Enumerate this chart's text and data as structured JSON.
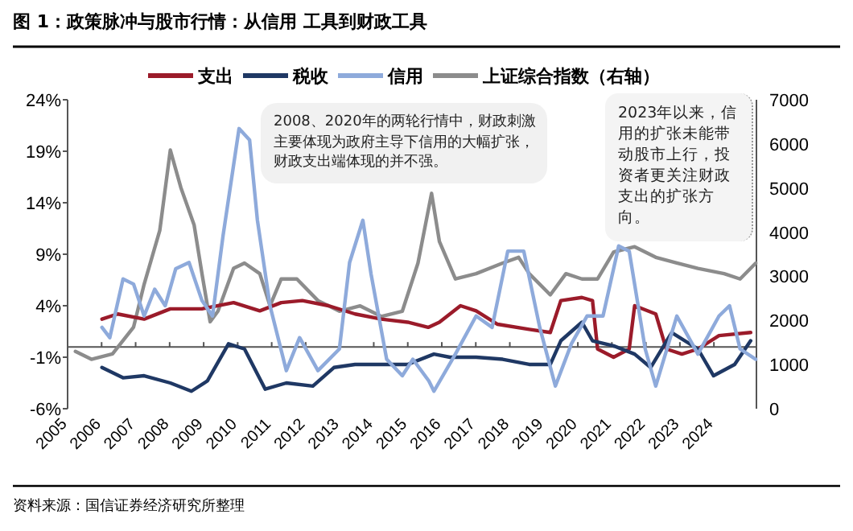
{
  "chart_data": {
    "type": "line",
    "title": "图 1：政策脉冲与股市行情：从信用 工具到财政工具",
    "legend": "top",
    "line_style": "solid",
    "annotations": [
      "2008、2020年的两轮行情中，财政刺激主要体现为政府主导下信用的大幅扩张，财政支出端体现的并不强。",
      "2023年以来，信用的扩张未能带动股市上行，投资者更关注财政支出的扩张方向。",
      "资料来源：国信证券经济研究所整理"
    ],
    "xlim": [
      2005,
      2025.25
    ],
    "xticks": [
      2005,
      2006,
      2007,
      2008,
      2009,
      2010,
      2011,
      2012,
      2013,
      2014,
      2015,
      2016,
      2017,
      2018,
      2019,
      2020,
      2021,
      2022,
      2023,
      2024
    ],
    "ylim": [
      -6,
      24
    ],
    "yticks": [
      {
        "value": -6,
        "label": "-6%"
      },
      {
        "value": -1,
        "label": "-1%"
      },
      {
        "value": 4,
        "label": "4%"
      },
      {
        "value": 9,
        "label": "9%"
      },
      {
        "value": 14,
        "label": "14%"
      },
      {
        "value": 19,
        "label": "19%"
      },
      {
        "value": 24,
        "label": "24%"
      }
    ],
    "y2lim": [
      0,
      7000
    ],
    "y2ticks": [
      0,
      1000,
      2000,
      3000,
      4000,
      5000,
      6000,
      7000
    ],
    "series": [
      {
        "name": "支出",
        "color": "#9b1b2a",
        "x": [
          2006.01,
          2006.47,
          2007.25,
          2008.02,
          2008.95,
          2009.88,
          2010.65,
          2011.28,
          2011.9,
          2012.67,
          2013.45,
          2014.22,
          2015.0,
          2015.6,
          2015.93,
          2016.55,
          2017.01,
          2017.64,
          2018.57,
          2019.19,
          2019.5,
          2020.12,
          2020.43,
          2020.58,
          2021.05,
          2021.51,
          2021.67,
          2022.29,
          2022.6,
          2023.06,
          2023.53,
          2024.15,
          2025.08
        ],
        "values": [
          2.7,
          3.2,
          2.7,
          3.7,
          3.7,
          4.3,
          3.5,
          4.3,
          4.5,
          4.0,
          3.2,
          2.7,
          2.4,
          1.9,
          2.4,
          4.0,
          3.5,
          2.2,
          1.7,
          1.4,
          4.5,
          4.8,
          4.5,
          -0.2,
          -1.0,
          -0.2,
          4.0,
          3.2,
          -0.2,
          -0.7,
          -0.2,
          1.1,
          1.4
        ]
      },
      {
        "name": "税收",
        "color": "#1f3864",
        "x": [
          2006.01,
          2006.63,
          2007.25,
          2008.02,
          2008.64,
          2009.11,
          2009.73,
          2010.2,
          2010.81,
          2011.43,
          2012.21,
          2012.83,
          2013.45,
          2014.22,
          2015.0,
          2015.77,
          2016.24,
          2017.01,
          2017.79,
          2018.57,
          2019.19,
          2019.5,
          2020.12,
          2020.43,
          2021.05,
          2021.67,
          2022.14,
          2022.76,
          2023.53,
          2023.99,
          2024.61,
          2025.08
        ],
        "values": [
          -2.0,
          -3.0,
          -2.8,
          -3.5,
          -4.3,
          -3.3,
          0.3,
          -0.2,
          -4.1,
          -3.5,
          -3.8,
          -2.0,
          -1.7,
          -1.7,
          -1.7,
          -0.7,
          -1.0,
          -1.0,
          -1.2,
          -1.7,
          -1.7,
          0.6,
          2.4,
          0.6,
          0.1,
          -0.7,
          -2.0,
          1.4,
          -0.2,
          -2.8,
          -1.7,
          0.6
        ]
      },
      {
        "name": "信用",
        "color": "#8eaadb",
        "x": [
          2006.01,
          2006.24,
          2006.63,
          2006.94,
          2007.25,
          2007.56,
          2007.87,
          2008.18,
          2008.57,
          2008.95,
          2009.26,
          2009.57,
          2010.04,
          2010.35,
          2010.58,
          2010.95,
          2011.43,
          2011.82,
          2012.36,
          2012.99,
          2013.29,
          2013.68,
          2013.92,
          2014.38,
          2014.84,
          2015.15,
          2015.62,
          2015.77,
          2016.4,
          2017.01,
          2017.48,
          2017.94,
          2018.41,
          2018.88,
          2019.34,
          2019.81,
          2020.27,
          2020.74,
          2021.2,
          2021.51,
          2021.98,
          2022.29,
          2022.91,
          2023.53,
          2024.15,
          2024.46,
          2024.77,
          2025.23
        ],
        "values": [
          1.9,
          0.9,
          6.6,
          6.1,
          3.0,
          5.6,
          4.0,
          7.6,
          8.2,
          4.5,
          3.0,
          10.8,
          21.2,
          20.1,
          12.3,
          4.0,
          -2.3,
          0.9,
          -2.3,
          -0.2,
          8.2,
          12.3,
          7.1,
          -1.2,
          -2.8,
          -1.2,
          -3.3,
          -4.3,
          -0.7,
          3.0,
          1.9,
          9.3,
          9.3,
          1.9,
          -3.8,
          0.3,
          3.0,
          3.0,
          9.8,
          9.3,
          -0.2,
          -3.8,
          3.0,
          -0.7,
          3.0,
          4.0,
          -0.2,
          -1.2
        ]
      },
      {
        "name": "上证综合指数（右轴）",
        "color": "#8c8c8c",
        "axis": "y2",
        "x": [
          2005.23,
          2005.7,
          2006.32,
          2006.94,
          2007.25,
          2007.71,
          2008.02,
          2008.33,
          2008.72,
          2008.95,
          2009.19,
          2009.42,
          2009.88,
          2010.2,
          2010.65,
          2010.95,
          2011.28,
          2011.74,
          2012.36,
          2012.99,
          2013.6,
          2014.22,
          2014.84,
          2015.3,
          2015.7,
          2015.93,
          2016.4,
          2017.01,
          2017.79,
          2018.26,
          2018.57,
          2019.19,
          2019.65,
          2020.12,
          2020.58,
          2021.05,
          2021.67,
          2022.29,
          2022.91,
          2023.53,
          2024.3,
          2024.77,
          2025.23
        ],
        "values": [
          1300,
          1120,
          1240,
          1850,
          2820,
          4040,
          5860,
          5010,
          4160,
          3060,
          1970,
          2210,
          3180,
          3300,
          3060,
          2330,
          2940,
          2940,
          2450,
          2210,
          2330,
          2090,
          2210,
          3300,
          4880,
          3790,
          2940,
          3060,
          3300,
          3430,
          3060,
          2580,
          3060,
          2940,
          2940,
          3550,
          3670,
          3430,
          3300,
          3180,
          3060,
          2940,
          3300
        ]
      }
    ]
  }
}
